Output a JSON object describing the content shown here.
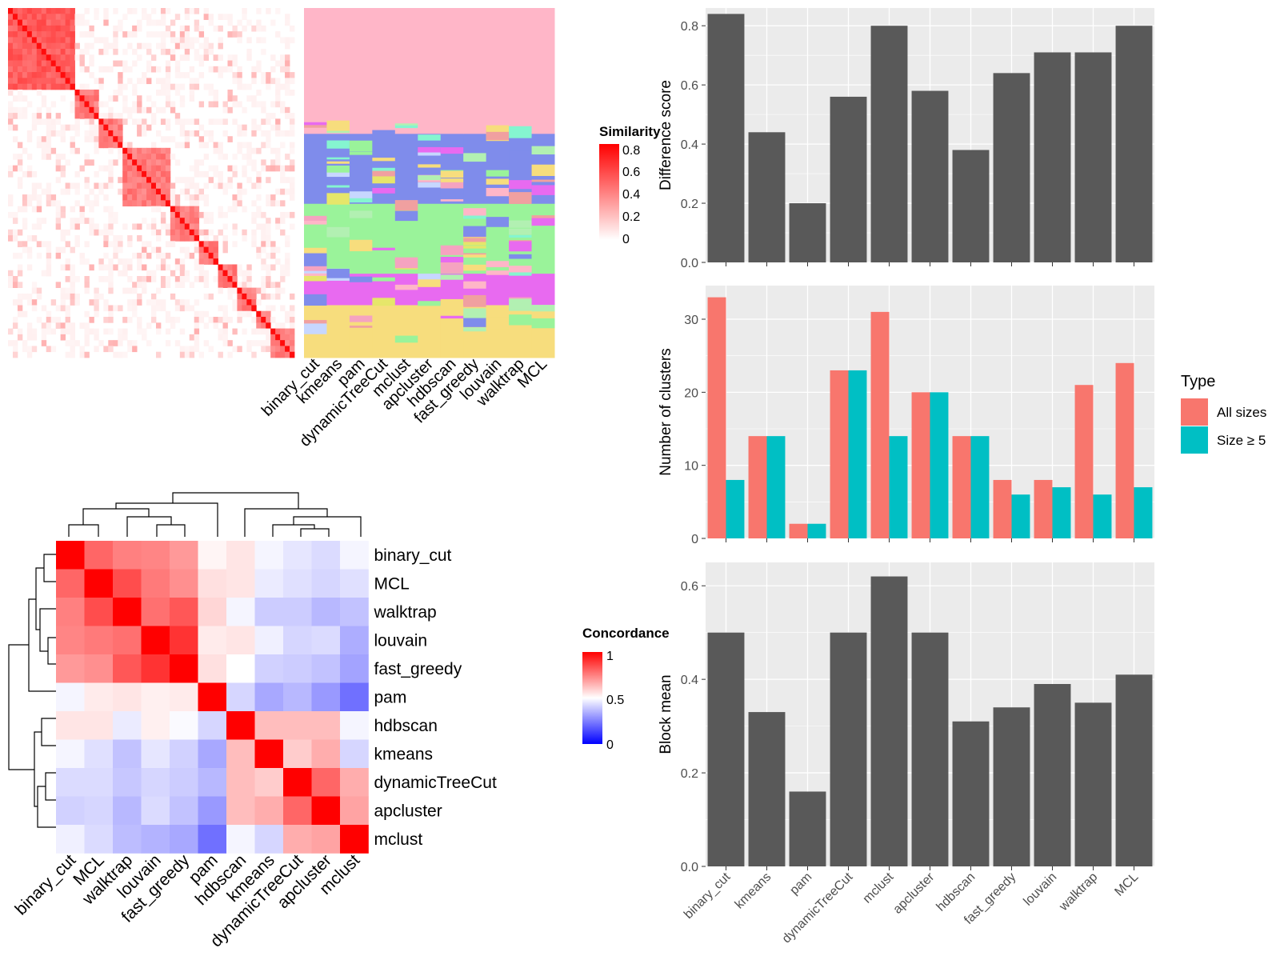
{
  "similarity_legend": {
    "title": "Similarity",
    "ticks": [
      "0.8",
      "0.6",
      "0.4",
      "0.2",
      "0"
    ]
  },
  "concordance_legend": {
    "title": "Concordance",
    "ticks": [
      "1",
      "0.5",
      "0"
    ]
  },
  "type_legend": {
    "title": "Type",
    "entries": [
      {
        "label": "All sizes",
        "color": "#F8766D"
      },
      {
        "label": "Size ≥ 5",
        "color": "#00BFC4"
      }
    ]
  },
  "colors": {
    "bar": "#595959",
    "panel_bg": "#EBEBEB",
    "similarity_high": "#FF0000",
    "concordance_high": "#FF0000",
    "concordance_mid": "#FFFFFF",
    "concordance_low": "#0000FF"
  },
  "chart_data": [
    {
      "id": "similarity_heatmap",
      "type": "heatmap",
      "note_description": "similarity matrix with cluster membership annotation columns",
      "annotation_columns": [
        "binary_cut",
        "kmeans",
        "pam",
        "dynamicTreeCut",
        "mclust",
        "apcluster",
        "hdbscan",
        "fast_greedy",
        "louvain",
        "walktrap",
        "MCL"
      ],
      "scale_range": [
        0,
        0.8
      ]
    },
    {
      "id": "concordance_heatmap",
      "type": "heatmap",
      "rows": [
        "binary_cut",
        "MCL",
        "walktrap",
        "louvain",
        "fast_greedy",
        "pam",
        "hdbscan",
        "kmeans",
        "dynamicTreeCut",
        "apcluster",
        "mclust"
      ],
      "columns": [
        "binary_cut",
        "MCL",
        "walktrap",
        "louvain",
        "fast_greedy",
        "pam",
        "hdbscan",
        "kmeans",
        "dynamicTreeCut",
        "apcluster",
        "mclust"
      ],
      "values": [
        [
          1.0,
          0.8,
          0.75,
          0.74,
          0.7,
          0.52,
          0.55,
          0.48,
          0.45,
          0.43,
          0.48
        ],
        [
          0.8,
          1.0,
          0.85,
          0.76,
          0.72,
          0.56,
          0.55,
          0.46,
          0.44,
          0.42,
          0.44
        ],
        [
          0.75,
          0.85,
          1.0,
          0.78,
          0.83,
          0.58,
          0.48,
          0.4,
          0.4,
          0.36,
          0.38
        ],
        [
          0.74,
          0.76,
          0.78,
          1.0,
          0.9,
          0.54,
          0.55,
          0.47,
          0.42,
          0.43,
          0.34
        ],
        [
          0.7,
          0.72,
          0.83,
          0.9,
          1.0,
          0.56,
          0.5,
          0.41,
          0.4,
          0.38,
          0.32
        ],
        [
          0.48,
          0.54,
          0.55,
          0.53,
          0.54,
          1.0,
          0.42,
          0.33,
          0.36,
          0.3,
          0.22
        ],
        [
          0.55,
          0.55,
          0.46,
          0.53,
          0.49,
          0.42,
          1.0,
          0.63,
          0.63,
          0.63,
          0.48
        ],
        [
          0.48,
          0.44,
          0.38,
          0.45,
          0.41,
          0.33,
          0.63,
          1.0,
          0.6,
          0.66,
          0.42
        ],
        [
          0.43,
          0.43,
          0.39,
          0.42,
          0.4,
          0.36,
          0.63,
          0.6,
          1.0,
          0.8,
          0.66
        ],
        [
          0.41,
          0.42,
          0.36,
          0.43,
          0.38,
          0.3,
          0.63,
          0.66,
          0.8,
          1.0,
          0.68
        ],
        [
          0.47,
          0.43,
          0.37,
          0.35,
          0.33,
          0.22,
          0.48,
          0.42,
          0.66,
          0.68,
          1.0
        ]
      ],
      "scale_range": [
        0,
        1
      ]
    },
    {
      "id": "difference_score",
      "type": "bar",
      "categories": [
        "binary_cut",
        "kmeans",
        "pam",
        "dynamicTreeCut",
        "mclust",
        "apcluster",
        "hdbscan",
        "fast_greedy",
        "louvain",
        "walktrap",
        "MCL"
      ],
      "values": [
        0.84,
        0.44,
        0.2,
        0.56,
        0.8,
        0.58,
        0.38,
        0.64,
        0.71,
        0.71,
        0.8
      ],
      "ylabel": "Difference score",
      "ylim": [
        0,
        0.86
      ],
      "yticks": [
        0,
        0.2,
        0.4,
        0.6,
        0.8
      ],
      "ytick_labels": [
        "0.0",
        "0.2",
        "0.4",
        "0.6",
        "0.8"
      ]
    },
    {
      "id": "number_of_clusters",
      "type": "bar",
      "categories": [
        "binary_cut",
        "kmeans",
        "pam",
        "dynamicTreeCut",
        "mclust",
        "apcluster",
        "hdbscan",
        "fast_greedy",
        "louvain",
        "walktrap",
        "MCL"
      ],
      "series": [
        {
          "name": "All sizes",
          "values": [
            33,
            14,
            2,
            23,
            31,
            20,
            14,
            8,
            8,
            21,
            24
          ]
        },
        {
          "name": "Size ≥ 5",
          "values": [
            8,
            14,
            2,
            23,
            14,
            20,
            14,
            6,
            7,
            6,
            7
          ]
        }
      ],
      "ylabel": "Number of clusters",
      "ylim": [
        0,
        34.6
      ],
      "yticks": [
        0,
        10,
        20,
        30
      ],
      "ytick_labels": [
        "0",
        "10",
        "20",
        "30"
      ]
    },
    {
      "id": "block_mean",
      "type": "bar",
      "categories": [
        "binary_cut",
        "kmeans",
        "pam",
        "dynamicTreeCut",
        "mclust",
        "apcluster",
        "hdbscan",
        "fast_greedy",
        "louvain",
        "walktrap",
        "MCL"
      ],
      "values": [
        0.5,
        0.33,
        0.16,
        0.5,
        0.62,
        0.5,
        0.31,
        0.34,
        0.39,
        0.35,
        0.41
      ],
      "ylabel": "Block mean",
      "ylim": [
        0,
        0.65
      ],
      "yticks": [
        0,
        0.2,
        0.4,
        0.6
      ],
      "ytick_labels": [
        "0.0",
        "0.2",
        "0.4",
        "0.6"
      ]
    }
  ]
}
